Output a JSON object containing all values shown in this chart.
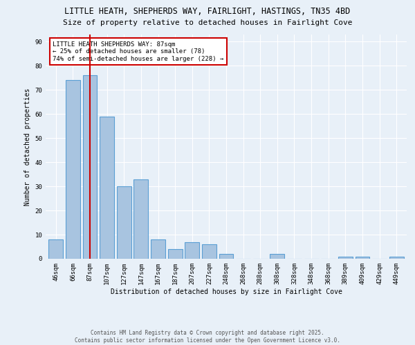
{
  "title": "LITTLE HEATH, SHEPHERDS WAY, FAIRLIGHT, HASTINGS, TN35 4BD",
  "subtitle": "Size of property relative to detached houses in Fairlight Cove",
  "xlabel": "Distribution of detached houses by size in Fairlight Cove",
  "ylabel": "Number of detached properties",
  "categories": [
    "46sqm",
    "66sqm",
    "87sqm",
    "107sqm",
    "127sqm",
    "147sqm",
    "167sqm",
    "187sqm",
    "207sqm",
    "227sqm",
    "248sqm",
    "268sqm",
    "288sqm",
    "308sqm",
    "328sqm",
    "348sqm",
    "368sqm",
    "389sqm",
    "409sqm",
    "429sqm",
    "449sqm"
  ],
  "values": [
    8,
    74,
    76,
    59,
    30,
    33,
    8,
    4,
    7,
    6,
    2,
    0,
    0,
    2,
    0,
    0,
    0,
    1,
    1,
    0,
    1
  ],
  "bar_color": "#a8c4e0",
  "bar_edge_color": "#5a9fd4",
  "property_line_x": 2,
  "property_line_color": "#cc0000",
  "annotation_text": "LITTLE HEATH SHEPHERDS WAY: 87sqm\n← 25% of detached houses are smaller (78)\n74% of semi-detached houses are larger (228) →",
  "annotation_box_color": "#ffffff",
  "annotation_box_edge_color": "#cc0000",
  "ylim": [
    0,
    93
  ],
  "yticks": [
    0,
    10,
    20,
    30,
    40,
    50,
    60,
    70,
    80,
    90
  ],
  "background_color": "#e8f0f8",
  "grid_color": "#ffffff",
  "footer_line1": "Contains HM Land Registry data © Crown copyright and database right 2025.",
  "footer_line2": "Contains public sector information licensed under the Open Government Licence v3.0.",
  "title_fontsize": 8.5,
  "subtitle_fontsize": 8,
  "axis_label_fontsize": 7,
  "tick_fontsize": 6.5,
  "annotation_fontsize": 6.5,
  "footer_fontsize": 5.5
}
